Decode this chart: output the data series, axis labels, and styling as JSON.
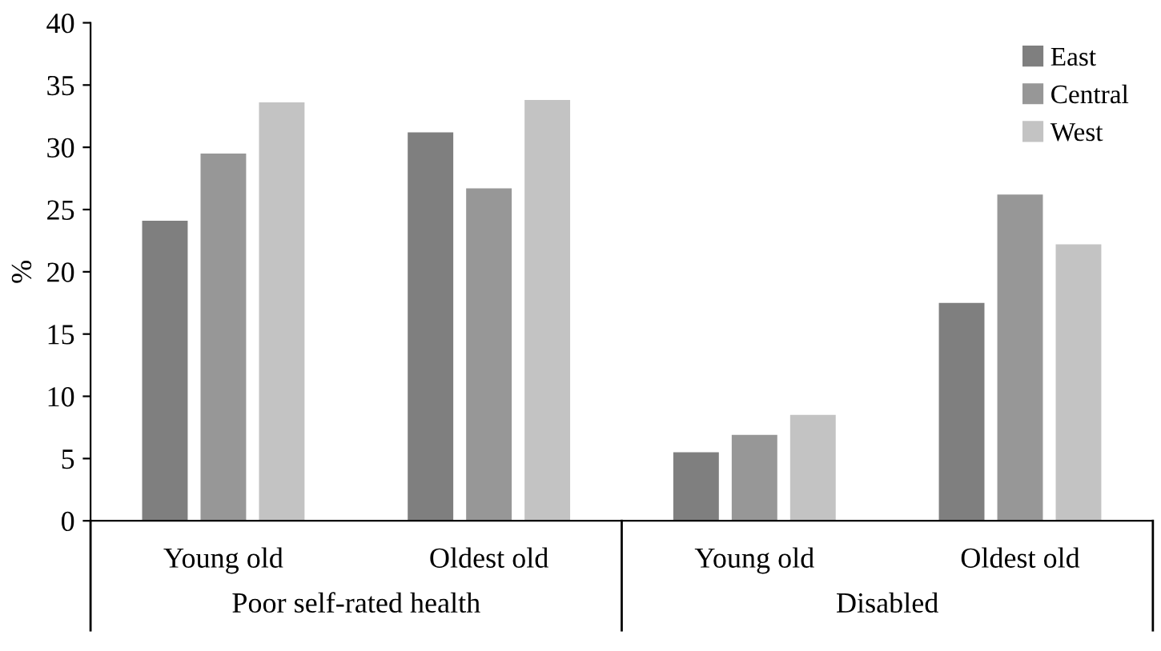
{
  "chart_data": {
    "type": "bar",
    "ylabel": "%",
    "categories": [
      "Young old",
      "Oldest old",
      "Young old",
      "Oldest old"
    ],
    "series": [
      {
        "name": "East",
        "color": "#7f7f7f",
        "values": [
          24.1,
          31.2,
          5.5,
          17.5
        ]
      },
      {
        "name": "Central",
        "color": "#979797",
        "values": [
          29.5,
          26.7,
          6.9,
          26.2
        ]
      },
      {
        "name": "West",
        "color": "#c3c3c3",
        "values": [
          33.6,
          33.8,
          8.5,
          22.2
        ]
      }
    ],
    "annotations": [
      "Poor self-rated health",
      "Disabled"
    ],
    "ylim": [
      0,
      40
    ],
    "yticks": [
      0,
      5,
      10,
      15,
      20,
      25,
      30,
      35,
      40
    ],
    "grid": false,
    "legend": "top right"
  }
}
